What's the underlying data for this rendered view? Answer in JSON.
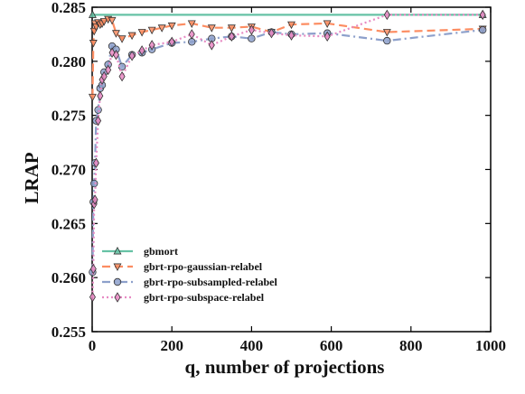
{
  "chart_data": {
    "type": "line",
    "title": "",
    "xlabel": "q, number of projections",
    "ylabel": "LRAP",
    "xlim": [
      0,
      1000
    ],
    "ylim": [
      0.255,
      0.285
    ],
    "xticks": [
      0,
      200,
      400,
      600,
      800,
      1000
    ],
    "xtick_labels": [
      "0",
      "200",
      "400",
      "600",
      "800",
      "1000"
    ],
    "yticks": [
      0.255,
      0.26,
      0.265,
      0.27,
      0.275,
      0.28,
      0.285
    ],
    "ytick_labels": [
      "0.255",
      "0.260",
      "0.265",
      "0.270",
      "0.275",
      "0.280",
      "0.285"
    ],
    "grid": false,
    "legend_position": "lower-left",
    "series": [
      {
        "name": "gbmort",
        "color": "#66c2a5",
        "marker": "triangle-up",
        "line_style": "solid",
        "points": [
          [
            1,
            0.2843
          ],
          [
            980,
            0.2843
          ]
        ]
      },
      {
        "name": "gbrt-rpo-gaussian-relabel",
        "color": "#fc8d62",
        "marker": "triangle-down",
        "line_style": "dashed",
        "points": [
          [
            1,
            0.2767
          ],
          [
            3,
            0.2817
          ],
          [
            5,
            0.2828
          ],
          [
            7,
            0.2835
          ],
          [
            10,
            0.2832
          ],
          [
            15,
            0.2836
          ],
          [
            20,
            0.2834
          ],
          [
            25,
            0.2835
          ],
          [
            30,
            0.2837
          ],
          [
            40,
            0.2839
          ],
          [
            50,
            0.2838
          ],
          [
            60,
            0.2826
          ],
          [
            75,
            0.2821
          ],
          [
            100,
            0.2824
          ],
          [
            125,
            0.2827
          ],
          [
            150,
            0.2829
          ],
          [
            175,
            0.2831
          ],
          [
            200,
            0.2833
          ],
          [
            250,
            0.2835
          ],
          [
            300,
            0.2831
          ],
          [
            350,
            0.2831
          ],
          [
            400,
            0.2832
          ],
          [
            450,
            0.2827
          ],
          [
            500,
            0.2834
          ],
          [
            590,
            0.2835
          ],
          [
            740,
            0.2827
          ],
          [
            980,
            0.283
          ]
        ]
      },
      {
        "name": "gbrt-rpo-subsampled-relabel",
        "color": "#8da0cb",
        "marker": "circle",
        "line_style": "dashdot",
        "points": [
          [
            1,
            0.2605
          ],
          [
            3,
            0.267
          ],
          [
            5,
            0.2687
          ],
          [
            7,
            0.2706
          ],
          [
            10,
            0.2745
          ],
          [
            15,
            0.2755
          ],
          [
            20,
            0.2775
          ],
          [
            25,
            0.2778
          ],
          [
            30,
            0.279
          ],
          [
            40,
            0.2797
          ],
          [
            50,
            0.2814
          ],
          [
            60,
            0.2811
          ],
          [
            75,
            0.2795
          ],
          [
            100,
            0.2806
          ],
          [
            125,
            0.2808
          ],
          [
            150,
            0.2811
          ],
          [
            200,
            0.2817
          ],
          [
            250,
            0.2818
          ],
          [
            300,
            0.2821
          ],
          [
            350,
            0.2823
          ],
          [
            400,
            0.2821
          ],
          [
            450,
            0.2827
          ],
          [
            500,
            0.2825
          ],
          [
            590,
            0.2826
          ],
          [
            740,
            0.2819
          ],
          [
            980,
            0.2829
          ]
        ]
      },
      {
        "name": "gbrt-rpo-subspace-relabel",
        "color": "#e78ac3",
        "marker": "diamond",
        "line_style": "dotted",
        "points": [
          [
            1,
            0.2582
          ],
          [
            3,
            0.2608
          ],
          [
            5,
            0.2668
          ],
          [
            7,
            0.2672
          ],
          [
            10,
            0.2706
          ],
          [
            15,
            0.2745
          ],
          [
            20,
            0.2768
          ],
          [
            25,
            0.2783
          ],
          [
            30,
            0.2786
          ],
          [
            40,
            0.2792
          ],
          [
            50,
            0.2808
          ],
          [
            60,
            0.2806
          ],
          [
            75,
            0.2786
          ],
          [
            100,
            0.2805
          ],
          [
            125,
            0.281
          ],
          [
            150,
            0.2815
          ],
          [
            200,
            0.2818
          ],
          [
            250,
            0.2825
          ],
          [
            300,
            0.2815
          ],
          [
            350,
            0.2823
          ],
          [
            400,
            0.2829
          ],
          [
            450,
            0.2826
          ],
          [
            500,
            0.2824
          ],
          [
            590,
            0.2823
          ],
          [
            740,
            0.2843
          ],
          [
            980,
            0.2843
          ]
        ]
      }
    ]
  }
}
